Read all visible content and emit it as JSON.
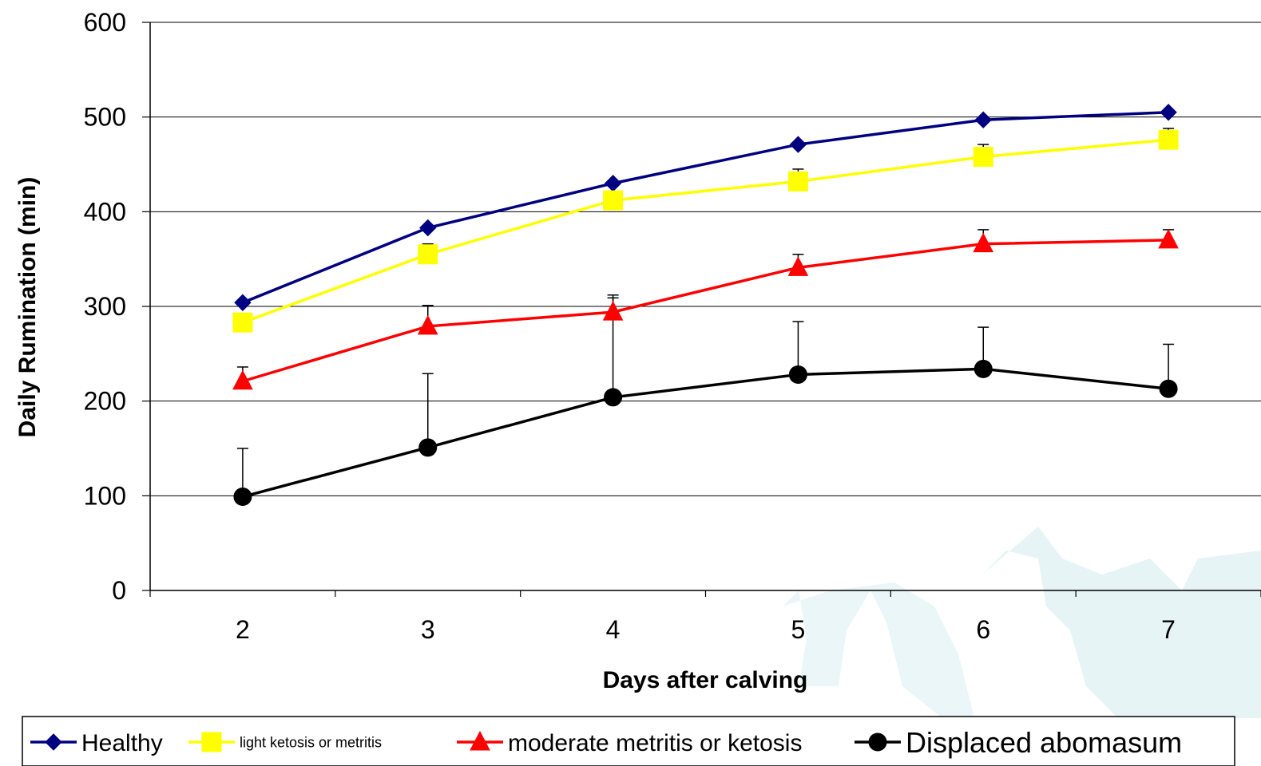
{
  "chart_data": {
    "type": "line",
    "title": "",
    "xlabel": "Days after calving",
    "ylabel": "Daily Rumination (min)",
    "categories": [
      "2",
      "3",
      "4",
      "5",
      "6",
      "7"
    ],
    "ylim": [
      0,
      600
    ],
    "yticks": [
      "0",
      "100",
      "200",
      "300",
      "400",
      "500",
      "600"
    ],
    "grid": true,
    "legend_position": "bottom",
    "series": [
      {
        "name": "Healthy",
        "color": "#000080",
        "marker": "diamond",
        "values": [
          304,
          383,
          430,
          471,
          497,
          505
        ],
        "error_top": [
          null,
          null,
          null,
          null,
          null,
          null
        ]
      },
      {
        "name": "light ketosis or metritis",
        "color": "#FFFF00",
        "marker": "square",
        "values": [
          283,
          355,
          412,
          432,
          458,
          476
        ],
        "error_top": [
          null,
          366,
          null,
          445,
          471,
          488
        ]
      },
      {
        "name": "moderate metritis or ketosis",
        "color": "#FF0000",
        "marker": "triangle",
        "values": [
          221,
          279,
          294,
          341,
          366,
          370
        ],
        "error_top": [
          236,
          301,
          309,
          355,
          381,
          381
        ]
      },
      {
        "name": "Displaced abomasum",
        "color": "#000000",
        "marker": "circle",
        "values": [
          99,
          151,
          204,
          228,
          234,
          213
        ],
        "error_top": [
          150,
          229,
          312,
          284,
          278,
          260
        ]
      }
    ]
  }
}
